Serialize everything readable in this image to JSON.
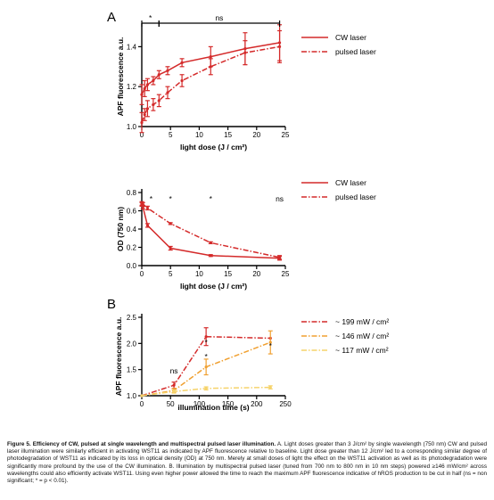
{
  "figure": {
    "caption": {
      "label": "Figure 5.",
      "title": "Efficiency of CW, pulsed at single wavelength and multispectral pulsed laser illumination.",
      "text": "A. Light doses greater than 3 J/cm² by single wavelength (750 nm) CW and pulsed laser illumination were similarly efficient in activating WST11 as indicated by APF fluorescence relative to baseline. Light dose greater than 12 J/cm² led to a corresponding similar degree of photodegradation of WST11 as indicated by its loss in optical density (OD) at 750 nm. Merely at small doses of light the effect on the WST11 activation as well as its photodegradation were significantly more profound by the use of the CW illumination. B. Illumination by multispectral pulsed laser (tuned from 700 nm to 800 nm in 10 nm steps) powered ≥146 mW/cm² across wavelengths could also efficiently activate WST11. Using even higher power allowed the time to reach the maximum APF fluorescence indicative of hROS production to be cut in half (ns = non significant; * = p < 0.01)."
    }
  },
  "chart_data": [
    {
      "id": "A1",
      "panel_label": "A",
      "type": "line",
      "xlabel": "light dose (J / cm²)",
      "ylabel": "APF fluorescence a.u.",
      "xlim": [
        0,
        25
      ],
      "ylim": [
        1.0,
        1.5
      ],
      "xticks": [
        "0",
        "5",
        "10",
        "15",
        "20",
        "25"
      ],
      "yticks": [
        "1.0",
        "1.2",
        "1.4"
      ],
      "legend_position": "top-right",
      "series": [
        {
          "name": "CW laser",
          "style": "solid",
          "color": "#d42a2a",
          "x": [
            0,
            0.5,
            1,
            2,
            3,
            4.5,
            7,
            12,
            18,
            24
          ],
          "y": [
            1.16,
            1.19,
            1.21,
            1.23,
            1.26,
            1.28,
            1.32,
            1.35,
            1.39,
            1.42
          ],
          "err": [
            0.05,
            0.04,
            0.03,
            0.02,
            0.02,
            0.02,
            0.02,
            0.05,
            0.08,
            0.09
          ]
        },
        {
          "name": "pulsed laser",
          "style": "dashdot",
          "color": "#d42a2a",
          "x": [
            0,
            0.5,
            1,
            2,
            3,
            4.5,
            7,
            12,
            18,
            24
          ],
          "y": [
            1.02,
            1.06,
            1.09,
            1.11,
            1.13,
            1.17,
            1.23,
            1.3,
            1.37,
            1.4
          ],
          "err": [
            0.05,
            0.03,
            0.04,
            0.03,
            0.03,
            0.03,
            0.03,
            0.04,
            0.06,
            0.08
          ]
        }
      ],
      "annotations": [
        {
          "text": "*",
          "x_from": 0,
          "x_to": 3
        },
        {
          "text": "ns",
          "x_from": 3,
          "x_to": 24
        }
      ]
    },
    {
      "id": "A2",
      "type": "line",
      "xlabel": "light dose (J / cm²)",
      "ylabel": "OD (750 nm)",
      "xlim": [
        0,
        25
      ],
      "ylim": [
        0.0,
        0.8
      ],
      "xticks": [
        "0",
        "5",
        "10",
        "15",
        "20",
        "25"
      ],
      "yticks": [
        "0.0",
        "0.2",
        "0.4",
        "0.6",
        "0.8"
      ],
      "legend_position": "top-right",
      "series": [
        {
          "name": "CW laser",
          "style": "solid",
          "color": "#d42a2a",
          "x": [
            0,
            0.2,
            1,
            5,
            12,
            24
          ],
          "y": [
            0.67,
            0.64,
            0.44,
            0.19,
            0.11,
            0.08
          ],
          "err": [
            0.02,
            0.02,
            0.02,
            0.02,
            0.01,
            0.02
          ]
        },
        {
          "name": "pulsed laser",
          "style": "dashdot",
          "color": "#d42a2a",
          "x": [
            0,
            0.2,
            1,
            5,
            12,
            24
          ],
          "y": [
            0.68,
            0.67,
            0.63,
            0.46,
            0.25,
            0.09
          ],
          "err": [
            0.02,
            0.02,
            0.02,
            0.01,
            0.01,
            0.02
          ]
        }
      ],
      "annotations": [
        {
          "text": "*",
          "x": 1
        },
        {
          "text": "*",
          "x": 5
        },
        {
          "text": "*",
          "x": 12
        },
        {
          "text": "ns",
          "x": 24
        }
      ]
    },
    {
      "id": "B",
      "panel_label": "B",
      "type": "line",
      "xlabel": "illumination time (s)",
      "ylabel": "APF fluorescence a.u.",
      "xlim": [
        0,
        250
      ],
      "ylim": [
        1.0,
        2.5
      ],
      "xticks": [
        "0",
        "50",
        "100",
        "150",
        "200",
        "250"
      ],
      "yticks": [
        "1.0",
        "1.5",
        "2.0",
        "2.5"
      ],
      "legend_position": "top-right",
      "series": [
        {
          "name": "~ 199 mW / cm²",
          "style": "dashdot",
          "color": "#d42a2a",
          "x": [
            0,
            56,
            112,
            224
          ],
          "y": [
            1.0,
            1.2,
            2.13,
            2.1
          ],
          "err": [
            0,
            0.06,
            0.17,
            0.0
          ]
        },
        {
          "name": "~ 146 mW / cm²",
          "style": "dashdot",
          "color": "#f0a030",
          "x": [
            0,
            56,
            112,
            224
          ],
          "y": [
            1.0,
            1.1,
            1.55,
            2.02
          ],
          "err": [
            0,
            0.04,
            0.15,
            0.22
          ]
        },
        {
          "name": "~ 117 mW / cm²",
          "style": "dashdot",
          "color": "#f6d36a",
          "x": [
            0,
            56,
            112,
            224
          ],
          "y": [
            1.0,
            1.08,
            1.14,
            1.16
          ],
          "err": [
            0,
            0.03,
            0.03,
            0.03
          ]
        }
      ],
      "annotations": [
        {
          "text": "ns",
          "x": 56
        },
        {
          "text": "*",
          "x": 112
        },
        {
          "text": "*",
          "x": 112
        },
        {
          "text": "*",
          "x": 224
        }
      ]
    }
  ]
}
